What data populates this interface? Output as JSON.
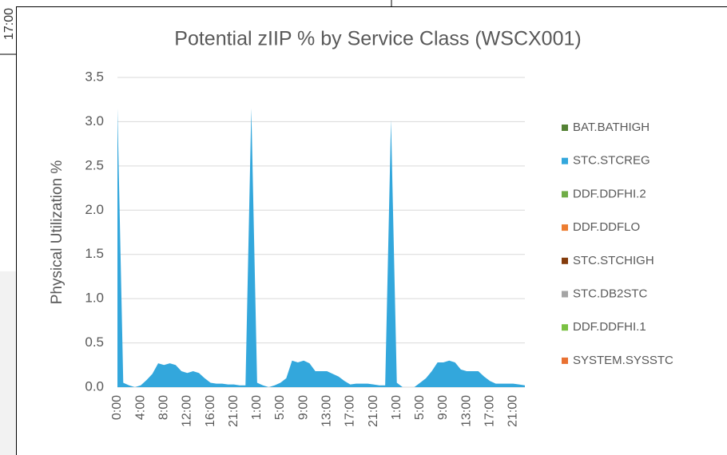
{
  "left_panel": {
    "labels": [
      "17:00"
    ]
  },
  "chart_data": {
    "type": "stacked_area",
    "title": "Potential zIIP % by Service Class (WSCX001)",
    "y_label": "Physical Utilization %",
    "categories": [
      "0:00",
      null,
      null,
      null,
      "4:00",
      null,
      null,
      null,
      "8:00",
      null,
      null,
      null,
      "12:00",
      null,
      null,
      null,
      "16:00",
      null,
      null,
      null,
      "21:00",
      null,
      null,
      null,
      "1:00",
      null,
      null,
      null,
      "5:00",
      null,
      null,
      null,
      "9:00",
      null,
      null,
      null,
      "13:00",
      null,
      null,
      null,
      "17:00",
      null,
      null,
      null,
      "21:00",
      null,
      null,
      null,
      "1:00",
      null,
      null,
      null,
      "5:00",
      null,
      null,
      null,
      "9:00",
      null,
      null,
      null,
      "13:00",
      null,
      null,
      null,
      "17:00",
      null,
      null,
      null,
      "21:00",
      null,
      null
    ],
    "ylim": [
      0,
      3.5
    ],
    "yticks": [
      {
        "value": 0,
        "label": "0.0"
      },
      0.5,
      {
        "value": 1,
        "label": "1.0"
      },
      1.5,
      {
        "value": 2,
        "label": "2.0"
      },
      2.5,
      {
        "value": 3,
        "label": "3.0"
      },
      3.5
    ],
    "grid": true,
    "legend": "right",
    "series": [
      {
        "name": "BAT.BATHIGH",
        "color": "#548235",
        "values": [
          0,
          0,
          0,
          0,
          0,
          0,
          0,
          0,
          0,
          0,
          0,
          0,
          0,
          0,
          0,
          0,
          0,
          0,
          0,
          0,
          0,
          0,
          0,
          0,
          0,
          0,
          0,
          0,
          0,
          0,
          0,
          0,
          0,
          0,
          0,
          0,
          0,
          0,
          0,
          0,
          0,
          0,
          0,
          0,
          0,
          0,
          0,
          0,
          0,
          0,
          0,
          0,
          0,
          0,
          0,
          0,
          0,
          0,
          0,
          0,
          0,
          0,
          0,
          0,
          0,
          0,
          0,
          0,
          0,
          0,
          0
        ]
      },
      {
        "name": "STC.STCREG",
        "color": "#33a7dc",
        "values": [
          3.15,
          0.05,
          0.02,
          0,
          0.02,
          0.08,
          0.15,
          0.27,
          0.25,
          0.27,
          0.25,
          0.18,
          0.16,
          0.18,
          0.16,
          0.1,
          0.05,
          0.04,
          0.04,
          0.03,
          0.03,
          0.02,
          0.02,
          3.15,
          0.05,
          0.02,
          0,
          0.02,
          0.05,
          0.1,
          0.3,
          0.28,
          0.3,
          0.27,
          0.18,
          0.18,
          0.18,
          0.15,
          0.12,
          0.07,
          0.03,
          0.04,
          0.04,
          0.04,
          0.03,
          0.02,
          0.02,
          3.02,
          0.05,
          0,
          0,
          0,
          0.05,
          0.1,
          0.18,
          0.28,
          0.28,
          0.3,
          0.28,
          0.2,
          0.18,
          0.18,
          0.18,
          0.12,
          0.07,
          0.04,
          0.04,
          0.04,
          0.04,
          0.03,
          0.02
        ]
      },
      {
        "name": "DDF.DDFHI.2",
        "color": "#70ad47",
        "values": [
          0,
          0,
          0,
          0,
          0,
          0,
          0,
          0,
          0,
          0,
          0,
          0,
          0,
          0,
          0,
          0,
          0,
          0,
          0,
          0,
          0,
          0,
          0,
          0,
          0,
          0,
          0,
          0,
          0,
          0,
          0,
          0,
          0,
          0,
          0,
          0,
          0,
          0,
          0,
          0,
          0,
          0,
          0,
          0,
          0,
          0,
          0,
          0,
          0,
          0,
          0,
          0,
          0,
          0,
          0,
          0,
          0,
          0,
          0,
          0,
          0,
          0,
          0,
          0,
          0,
          0,
          0,
          0,
          0,
          0,
          0
        ]
      },
      {
        "name": "DDF.DDFLO",
        "color": "#ed7d31",
        "values": [
          0,
          0,
          0,
          0,
          0,
          0,
          0,
          0,
          0,
          0,
          0,
          0,
          0,
          0,
          0,
          0,
          0,
          0,
          0,
          0,
          0,
          0,
          0,
          0,
          0,
          0,
          0,
          0,
          0,
          0,
          0,
          0,
          0,
          0,
          0,
          0,
          0,
          0,
          0,
          0,
          0,
          0,
          0,
          0,
          0,
          0,
          0,
          0,
          0,
          0,
          0,
          0,
          0,
          0,
          0,
          0,
          0,
          0,
          0,
          0,
          0,
          0,
          0,
          0,
          0,
          0,
          0,
          0,
          0,
          0,
          0
        ]
      },
      {
        "name": "STC.STCHIGH",
        "color": "#843c0c",
        "values": [
          0,
          0,
          0,
          0,
          0,
          0,
          0,
          0,
          0,
          0,
          0,
          0,
          0,
          0,
          0,
          0,
          0,
          0,
          0,
          0,
          0,
          0,
          0,
          0,
          0,
          0,
          0,
          0,
          0,
          0,
          0,
          0,
          0,
          0,
          0,
          0,
          0,
          0,
          0,
          0,
          0,
          0,
          0,
          0,
          0,
          0,
          0,
          0,
          0,
          0,
          0,
          0,
          0,
          0,
          0,
          0,
          0,
          0,
          0,
          0,
          0,
          0,
          0,
          0,
          0,
          0,
          0,
          0,
          0,
          0,
          0
        ]
      },
      {
        "name": "STC.DB2STC",
        "color": "#a5a5a5",
        "values": [
          0,
          0,
          0,
          0,
          0,
          0,
          0,
          0,
          0,
          0,
          0,
          0,
          0,
          0,
          0,
          0,
          0,
          0,
          0,
          0,
          0,
          0,
          0,
          0,
          0,
          0,
          0,
          0,
          0,
          0,
          0,
          0,
          0,
          0,
          0,
          0,
          0,
          0,
          0,
          0,
          0,
          0,
          0,
          0,
          0,
          0,
          0,
          0,
          0,
          0,
          0,
          0,
          0,
          0,
          0,
          0,
          0,
          0,
          0,
          0,
          0,
          0,
          0,
          0,
          0,
          0,
          0,
          0,
          0,
          0,
          0
        ]
      },
      {
        "name": "DDF.DDFHI.1",
        "color": "#7ac142",
        "values": [
          0,
          0,
          0,
          0,
          0,
          0,
          0,
          0,
          0,
          0,
          0,
          0,
          0,
          0,
          0,
          0,
          0,
          0,
          0,
          0,
          0,
          0,
          0,
          0,
          0,
          0,
          0,
          0,
          0,
          0,
          0,
          0,
          0,
          0,
          0,
          0,
          0,
          0,
          0,
          0,
          0,
          0,
          0,
          0,
          0,
          0,
          0,
          0,
          0,
          0,
          0,
          0,
          0,
          0,
          0,
          0,
          0,
          0,
          0,
          0,
          0,
          0,
          0,
          0,
          0,
          0,
          0,
          0,
          0,
          0,
          0
        ]
      },
      {
        "name": "SYSTEM.SYSSTC",
        "color": "#e97132",
        "values": [
          0,
          0,
          0,
          0,
          0,
          0,
          0,
          0,
          0,
          0,
          0,
          0,
          0,
          0,
          0,
          0,
          0,
          0,
          0,
          0,
          0,
          0,
          0,
          0,
          0,
          0,
          0,
          0,
          0,
          0,
          0,
          0,
          0,
          0,
          0,
          0,
          0,
          0,
          0,
          0,
          0,
          0,
          0,
          0,
          0,
          0,
          0,
          0,
          0,
          0,
          0,
          0,
          0,
          0,
          0,
          0,
          0,
          0,
          0,
          0,
          0,
          0,
          0,
          0,
          0,
          0,
          0,
          0,
          0,
          0,
          0
        ]
      }
    ]
  }
}
